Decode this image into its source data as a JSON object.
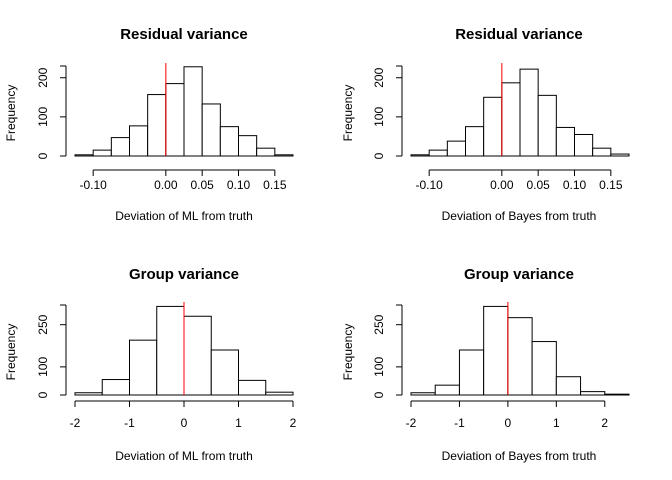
{
  "figure": {
    "background": "#ffffff",
    "bar_fill": "#ffffff",
    "bar_stroke": "#000000",
    "truth_line_color": "#ff0000"
  },
  "chart_data": [
    {
      "type": "bar",
      "subtype": "histogram",
      "title": "Residual variance",
      "xlabel": "Deviation of ML from truth",
      "ylabel": "Frequency",
      "bin_edges": [
        -0.125,
        -0.1,
        -0.075,
        -0.05,
        -0.025,
        0.0,
        0.025,
        0.05,
        0.075,
        0.1,
        0.125,
        0.15,
        0.175
      ],
      "counts": [
        3,
        15,
        47,
        77,
        157,
        185,
        228,
        133,
        75,
        52,
        20,
        3,
        2
      ],
      "xlim": [
        -0.125,
        0.175
      ],
      "ylim": [
        0,
        230
      ],
      "x_ticks": [
        -0.1,
        0.0,
        0.05,
        0.1,
        0.15
      ],
      "x_tick_labels": [
        "-0.10",
        "0.00",
        "0.05",
        "0.10",
        "0.15"
      ],
      "y_ticks": [
        0,
        100,
        200
      ],
      "y_tick_labels": [
        "0",
        "100",
        "200"
      ],
      "reference_line_x": 0
    },
    {
      "type": "bar",
      "subtype": "histogram",
      "title": "Residual variance",
      "xlabel": "Deviation of Bayes from truth",
      "ylabel": "Frequency",
      "bin_edges": [
        -0.125,
        -0.1,
        -0.075,
        -0.05,
        -0.025,
        0.0,
        0.025,
        0.05,
        0.075,
        0.1,
        0.125,
        0.15,
        0.175
      ],
      "counts": [
        3,
        15,
        38,
        75,
        150,
        187,
        222,
        155,
        73,
        55,
        20,
        5,
        2
      ],
      "xlim": [
        -0.125,
        0.175
      ],
      "ylim": [
        0,
        230
      ],
      "x_ticks": [
        -0.1,
        0.0,
        0.05,
        0.1,
        0.15
      ],
      "x_tick_labels": [
        "-0.10",
        "0.00",
        "0.05",
        "0.10",
        "0.15"
      ],
      "y_ticks": [
        0,
        100,
        200
      ],
      "y_tick_labels": [
        "0",
        "100",
        "200"
      ],
      "reference_line_x": 0
    },
    {
      "type": "bar",
      "subtype": "histogram",
      "title": "Group variance",
      "xlabel": "Deviation of ML from truth",
      "ylabel": "Frequency",
      "bin_edges": [
        -2.0,
        -1.5,
        -1.0,
        -0.5,
        0.0,
        0.5,
        1.0,
        1.5,
        2.0
      ],
      "counts": [
        8,
        55,
        195,
        315,
        280,
        160,
        52,
        10
      ],
      "xlim": [
        -2.0,
        2.0
      ],
      "ylim": [
        0,
        320
      ],
      "x_ticks": [
        -2,
        -1,
        0,
        1,
        2
      ],
      "x_tick_labels": [
        "-2",
        "-1",
        "0",
        "1",
        "2"
      ],
      "y_ticks": [
        0,
        100,
        250
      ],
      "y_tick_labels": [
        "0",
        "100",
        "250"
      ],
      "reference_line_x": 0
    },
    {
      "type": "bar",
      "subtype": "histogram",
      "title": "Group variance",
      "xlabel": "Deviation of Bayes from truth",
      "ylabel": "Frequency",
      "bin_edges": [
        -2.0,
        -1.5,
        -1.0,
        -0.5,
        0.0,
        0.5,
        1.0,
        1.5,
        2.0,
        2.5
      ],
      "counts": [
        8,
        35,
        160,
        315,
        275,
        190,
        65,
        12,
        3
      ],
      "xlim": [
        -2.0,
        2.5
      ],
      "ylim": [
        0,
        320
      ],
      "x_ticks": [
        -2,
        -1,
        0,
        1,
        2
      ],
      "x_tick_labels": [
        "-2",
        "-1",
        "0",
        "1",
        "2"
      ],
      "y_ticks": [
        0,
        100,
        250
      ],
      "y_tick_labels": [
        "0",
        "100",
        "250"
      ],
      "reference_line_x": 0
    }
  ]
}
